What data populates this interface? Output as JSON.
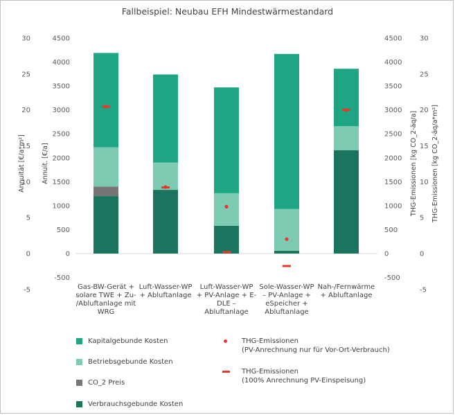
{
  "chart_data": {
    "type": "bar",
    "stacked": true,
    "title": "Fallbeispiel: Neubau EFH Mindestwärmestandard",
    "categories": [
      [
        "Gas-BW-Gerät +",
        "solare TWE + Zu-",
        "/Abluftanlage mit",
        "WRG"
      ],
      [
        "Luft-Wasser-WP",
        "+ Abluftanlage"
      ],
      [
        "Luft-Wasser-WP",
        "+ PV-Anlage + E-",
        "DLE –",
        "Abluftanlage"
      ],
      [
        "Sole-Wasser-WP",
        "– PV-Anlage +",
        "eSpeicher +",
        "Abluftanlage"
      ],
      [
        "Nah-/Fernwärme",
        "+ Abluftanlage"
      ]
    ],
    "series": [
      {
        "name": "Verbrauchsgebunde Kosten",
        "color": "#1b745e",
        "values": [
          1200,
          1330,
          580,
          60,
          2160
        ]
      },
      {
        "name": "CO_2 Preis",
        "color": "#767676",
        "values": [
          200,
          0,
          0,
          0,
          0
        ]
      },
      {
        "name": "Betriebsgebunde Kosten",
        "color": "#7dcbb3",
        "values": [
          820,
          570,
          680,
          870,
          500
        ]
      },
      {
        "name": "Kapitalgebunde Kosten",
        "color": "#1ea583",
        "values": [
          1970,
          1840,
          2210,
          3240,
          1200
        ]
      }
    ],
    "emissions_dot": {
      "name": "THG-Emissionen (PV-Anrechnung nur für Vor-Ort-Verbrauch)",
      "color": "#e8382a",
      "values": [
        3070,
        1390,
        980,
        300,
        3000
      ]
    },
    "emissions_dash": {
      "name": "THG-Emissionen (100% Anrechnung PV-Einspeisung)",
      "color": "#e8382a",
      "values": [
        3070,
        1380,
        30,
        -260,
        3000
      ]
    },
    "axes": {
      "left_outer": {
        "label": "Annuität [€/a*m²]",
        "ticks": [
          "30",
          "25",
          "20",
          "15",
          "10",
          "5",
          "0",
          "-5"
        ]
      },
      "left_inner": {
        "label": "Annuit. [€/a]",
        "ticks": [
          "4500",
          "4000",
          "3500",
          "3000",
          "2500",
          "2000",
          "1500",
          "1000",
          "500",
          "0",
          "-500"
        ]
      },
      "right_inner": {
        "label": "THG-Emissionen [kg CO_2-äq/a]",
        "ticks": [
          "4500",
          "4000",
          "3500",
          "3000",
          "2500",
          "2000",
          "1500",
          "1000",
          "500",
          "0",
          "-500"
        ]
      },
      "right_outer": {
        "label": "THG-Emissionen [kg CO_2-äq/a*m²]",
        "ticks": [
          "30",
          "25",
          "20",
          "15",
          "10",
          "5",
          "0",
          "-5"
        ]
      }
    },
    "ylim": [
      -500,
      4500
    ],
    "grid": false,
    "legend": {
      "items": [
        {
          "label": "Kapitalgebunde Kosten",
          "color": "#1ea583",
          "kind": "swatch"
        },
        {
          "label": "Betriebsgebunde Kosten",
          "color": "#7dcbb3",
          "kind": "swatch"
        },
        {
          "label": "CO_2 Preis",
          "color": "#767676",
          "kind": "swatch"
        },
        {
          "label": "Verbrauchsgebunde Kosten",
          "color": "#1b745e",
          "kind": "swatch"
        },
        {
          "label": "THG-Emissionen",
          "sub": "(PV-Anrechnung nur für Vor-Ort-Verbrauch)",
          "color": "#e8382a",
          "kind": "dot"
        },
        {
          "label": "THG-Emissionen",
          "sub": "(100% Anrechnung PV-Einspeisung)",
          "color": "#e8382a",
          "kind": "dash"
        }
      ]
    }
  }
}
